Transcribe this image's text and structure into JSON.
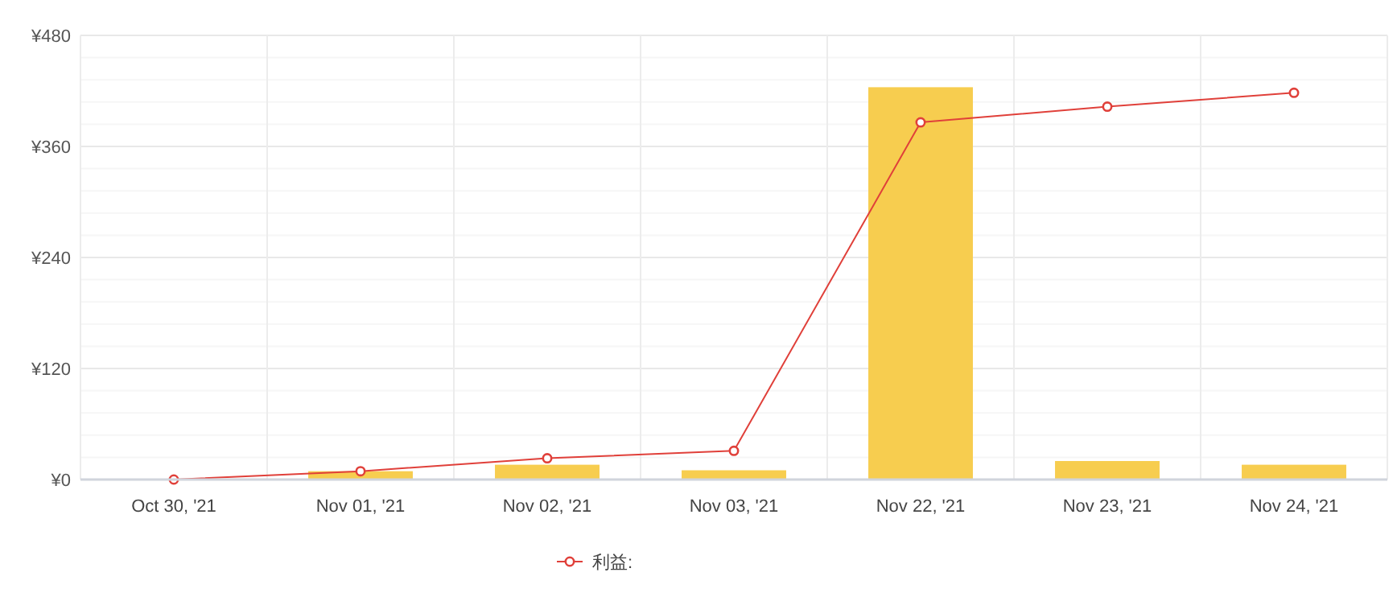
{
  "chart_data": {
    "type": "bar",
    "categories": [
      "Oct 30, '21",
      "Nov 01, '21",
      "Nov 02, '21",
      "Nov 03, '21",
      "Nov 22, '21",
      "Nov 23, '21",
      "Nov 24, '21"
    ],
    "series": [
      {
        "color": "#f7cd4f",
        "values": [
          0,
          9,
          16,
          10,
          424,
          20,
          16
        ]
      },
      {
        "type": "line",
        "name": "利益:",
        "color": "#e0403a",
        "values": [
          0,
          9,
          23,
          31,
          386,
          403,
          418
        ],
        "marker": "circle"
      }
    ],
    "ylim": [
      0,
      480
    ],
    "yticks": [
      {
        "value": 0,
        "label": "¥0"
      },
      {
        "value": 24,
        "label": null
      },
      {
        "value": 48,
        "label": null
      },
      {
        "value": 72,
        "label": null
      },
      {
        "value": 96,
        "label": null
      },
      {
        "value": 120,
        "label": "¥120"
      },
      {
        "value": 144,
        "label": null
      },
      {
        "value": 168,
        "label": null
      },
      {
        "value": 192,
        "label": null
      },
      {
        "value": 216,
        "label": null
      },
      {
        "value": 240,
        "label": "¥240"
      },
      {
        "value": 264,
        "label": null
      },
      {
        "value": 288,
        "label": null
      },
      {
        "value": 312,
        "label": null
      },
      {
        "value": 336,
        "label": null
      },
      {
        "value": 360,
        "label": "¥360"
      },
      {
        "value": 384,
        "label": null
      },
      {
        "value": 408,
        "label": null
      },
      {
        "value": 432,
        "label": null
      },
      {
        "value": 456,
        "label": null
      },
      {
        "value": 480,
        "label": "¥480"
      }
    ],
    "grid": true,
    "legend": "bottom"
  }
}
